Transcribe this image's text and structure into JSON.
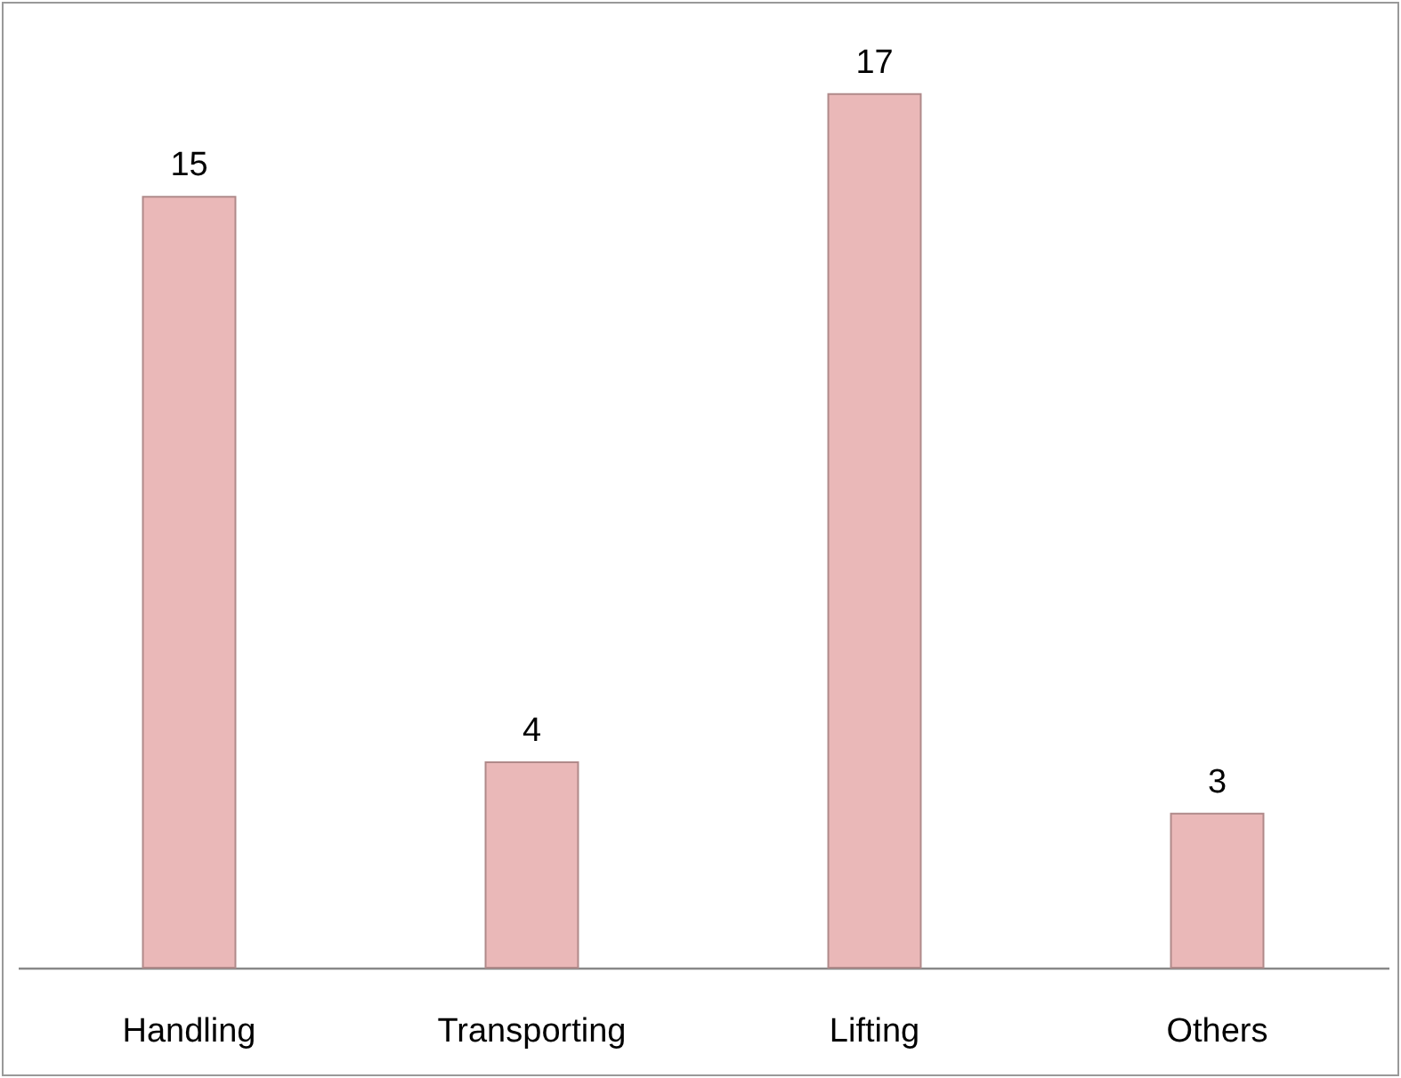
{
  "chart_data": {
    "type": "bar",
    "categories": [
      "Handling",
      "Transporting",
      "Lifting",
      "Others"
    ],
    "values": [
      15,
      4,
      17,
      3
    ],
    "color": "#eab8b8",
    "data_labels": true
  }
}
